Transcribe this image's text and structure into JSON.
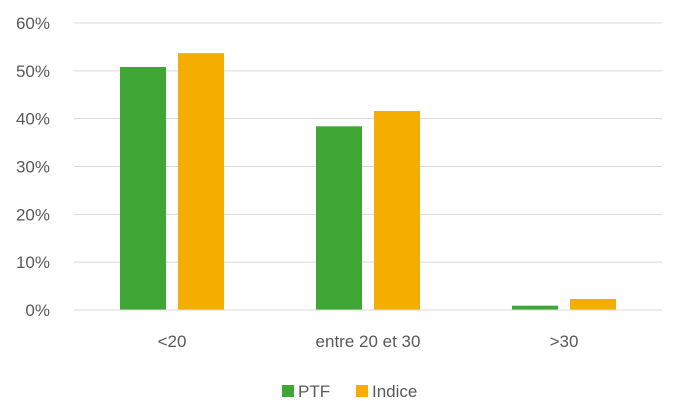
{
  "chart_data": {
    "type": "bar",
    "categories": [
      "<20",
      "entre 20 et 30",
      ">30"
    ],
    "series": [
      {
        "name": "PTF",
        "values": [
          50.8,
          38.4,
          0.9
        ],
        "color": "#3FA535"
      },
      {
        "name": "Indice",
        "values": [
          53.7,
          41.6,
          2.3
        ],
        "color": "#F5AE00"
      }
    ],
    "ylim": [
      0,
      60
    ],
    "yticks": [
      0,
      10,
      20,
      30,
      40,
      50,
      60
    ],
    "ytick_labels": [
      "0%",
      "10%",
      "20%",
      "30%",
      "40%",
      "50%",
      "60%"
    ],
    "grid": true,
    "legend_position": "bottom"
  }
}
